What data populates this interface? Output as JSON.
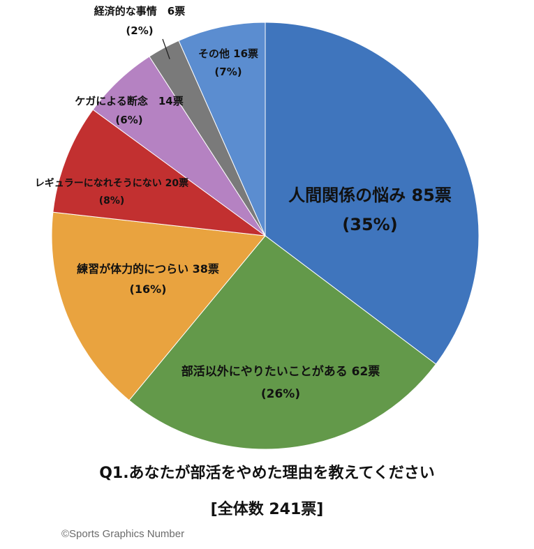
{
  "chart_data": {
    "type": "pie",
    "title": "Q1.あなたが部活をやめた理由を教えてください",
    "subtitle": "[全体数 241票]",
    "total": 241,
    "slices": [
      {
        "label": "人間関係の悩み",
        "votes_text": "85票",
        "pct_text": "(35%)",
        "value": 85,
        "color": "#3f75bd"
      },
      {
        "label": "部活以外にやりたいことがある",
        "votes_text": "62票",
        "pct_text": "(26%)",
        "value": 62,
        "color": "#63994a"
      },
      {
        "label": "練習が体力的につらい",
        "votes_text": "38票",
        "pct_text": "(16%)",
        "value": 38,
        "color": "#e9a33f"
      },
      {
        "label": "レギュラーになれそうにない",
        "votes_text": "20票",
        "pct_text": "(8%)",
        "value": 20,
        "color": "#c23030"
      },
      {
        "label": "ケガによる断念",
        "votes_text": "14票",
        "pct_text": "(6%)",
        "value": 14,
        "color": "#b582c2"
      },
      {
        "label": "経済的な事情",
        "votes_text": "6票",
        "pct_text": "(2%)",
        "value": 6,
        "color": "#7a7a7a"
      },
      {
        "label": "その他",
        "votes_text": "16票",
        "pct_text": "(7%)",
        "value": 16,
        "color": "#5b8dd0"
      }
    ]
  },
  "footer": {
    "copyright": "©Sports Graphics Number"
  }
}
